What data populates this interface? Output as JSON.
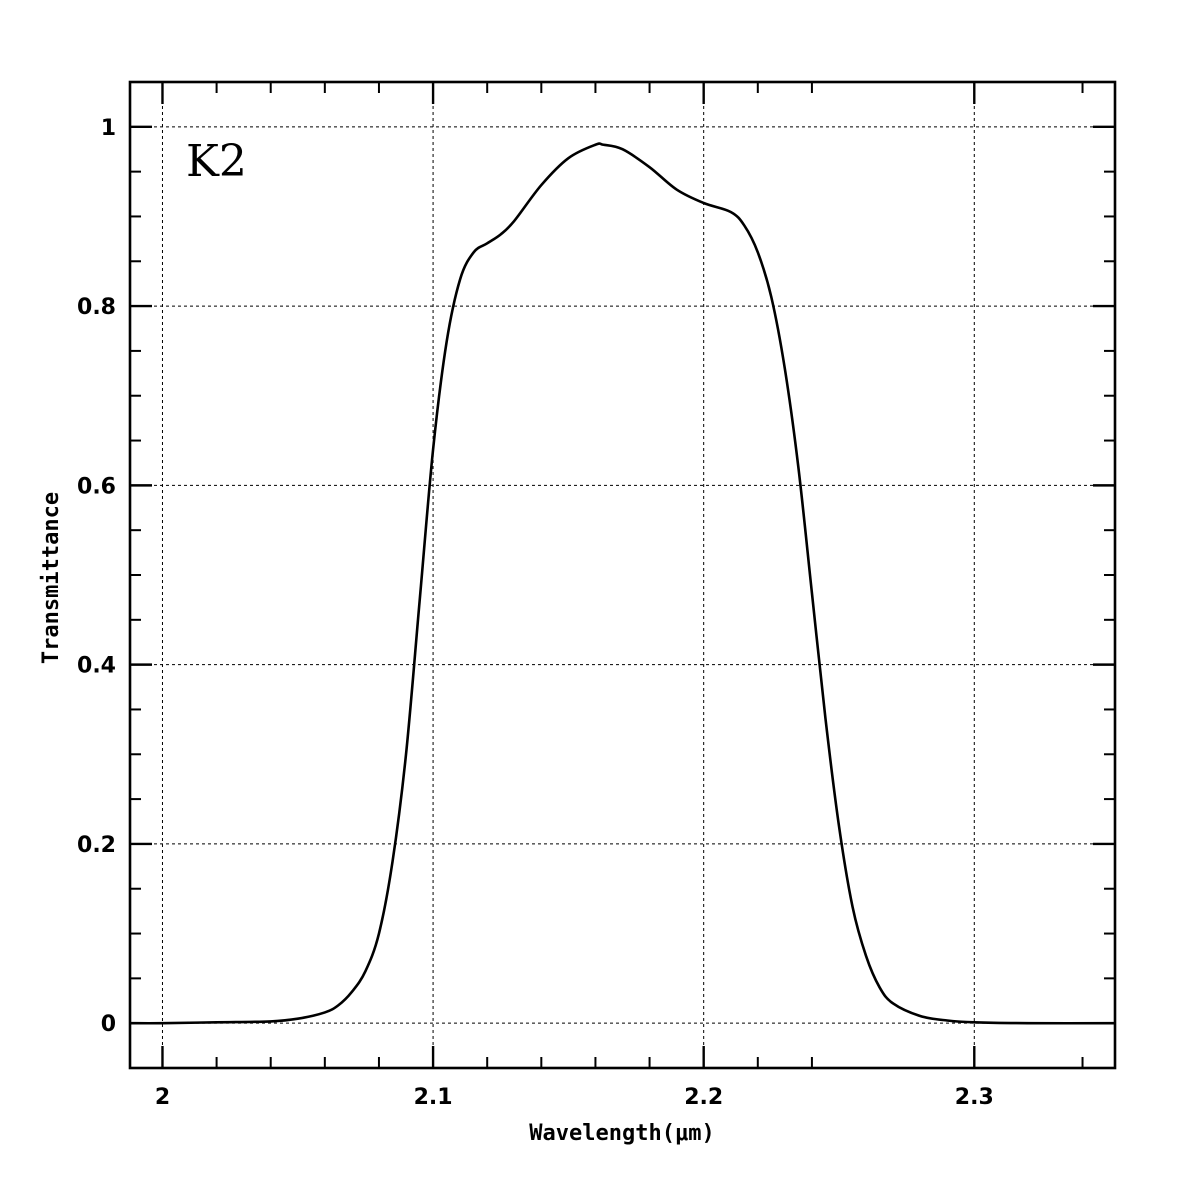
{
  "chart_data": {
    "type": "line",
    "annotation": "K2",
    "xlabel": "Wavelength(μm)",
    "ylabel": "Transmittance",
    "xlim": [
      1.988,
      2.352
    ],
    "ylim": [
      -0.05,
      1.05
    ],
    "xticks": [
      {
        "value": 2.0,
        "label": "2"
      },
      {
        "value": 2.1,
        "label": "2.1"
      },
      {
        "value": 2.2,
        "label": "2.2"
      },
      {
        "value": 2.3,
        "label": "2.3"
      }
    ],
    "yticks": [
      {
        "value": 0,
        "label": "0"
      },
      {
        "value": 0.2,
        "label": "0.2"
      },
      {
        "value": 0.4,
        "label": "0.4"
      },
      {
        "value": 0.6,
        "label": "0.6"
      },
      {
        "value": 0.8,
        "label": "0.8"
      },
      {
        "value": 1.0,
        "label": "1"
      }
    ],
    "grid": true,
    "series": [
      {
        "color": "#000000",
        "x": [
          1.988,
          2.0,
          2.02,
          2.04,
          2.05,
          2.06,
          2.065,
          2.07,
          2.075,
          2.08,
          2.085,
          2.09,
          2.095,
          2.1,
          2.105,
          2.11,
          2.115,
          2.12,
          2.125,
          2.13,
          2.14,
          2.15,
          2.16,
          2.163,
          2.17,
          2.18,
          2.19,
          2.2,
          2.21,
          2.215,
          2.22,
          2.225,
          2.23,
          2.235,
          2.24,
          2.245,
          2.25,
          2.255,
          2.26,
          2.265,
          2.27,
          2.28,
          2.29,
          2.3,
          2.32,
          2.352
        ],
        "y": [
          0.0,
          0.0,
          0.001,
          0.002,
          0.005,
          0.012,
          0.02,
          0.035,
          0.058,
          0.1,
          0.18,
          0.3,
          0.47,
          0.64,
          0.76,
          0.83,
          0.86,
          0.87,
          0.88,
          0.895,
          0.935,
          0.965,
          0.98,
          0.98,
          0.975,
          0.955,
          0.93,
          0.915,
          0.905,
          0.89,
          0.86,
          0.81,
          0.73,
          0.62,
          0.48,
          0.34,
          0.22,
          0.13,
          0.075,
          0.04,
          0.022,
          0.008,
          0.003,
          0.001,
          0.0,
          0.0
        ]
      }
    ]
  }
}
